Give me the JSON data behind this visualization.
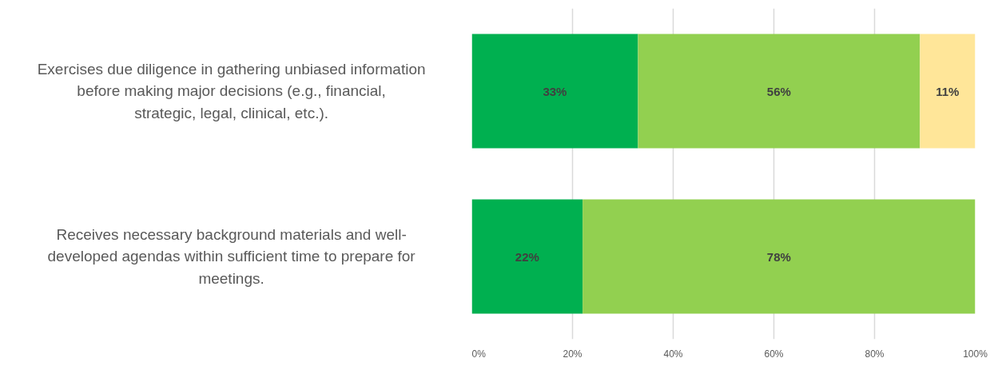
{
  "chart_data": {
    "type": "bar",
    "orientation": "horizontal",
    "stacked": true,
    "categories": [
      "Exercises due diligence in gathering unbiased information before making major decisions (e.g., financial, strategic, legal, clinical, etc.).",
      "Receives necessary background materials and well-developed agendas within sufficient time to prepare for meetings."
    ],
    "series": [
      {
        "color": "#00b050",
        "values": [
          33,
          22
        ],
        "value_labels": [
          "33%",
          "22%"
        ]
      },
      {
        "color": "#92d050",
        "values": [
          56,
          78
        ],
        "value_labels": [
          "56%",
          "78%"
        ]
      },
      {
        "color": "#ffe699",
        "values": [
          11,
          null
        ],
        "value_labels": [
          "11%",
          null
        ]
      }
    ],
    "xlim": [
      0,
      100
    ],
    "xticks": [
      {
        "value": 0,
        "label": "0%"
      },
      {
        "value": 20,
        "label": "20%"
      },
      {
        "value": 40,
        "label": "40%"
      },
      {
        "value": 60,
        "label": "60%"
      },
      {
        "value": 80,
        "label": "80%"
      },
      {
        "value": 100,
        "label": "100%"
      }
    ],
    "grid": "x"
  }
}
